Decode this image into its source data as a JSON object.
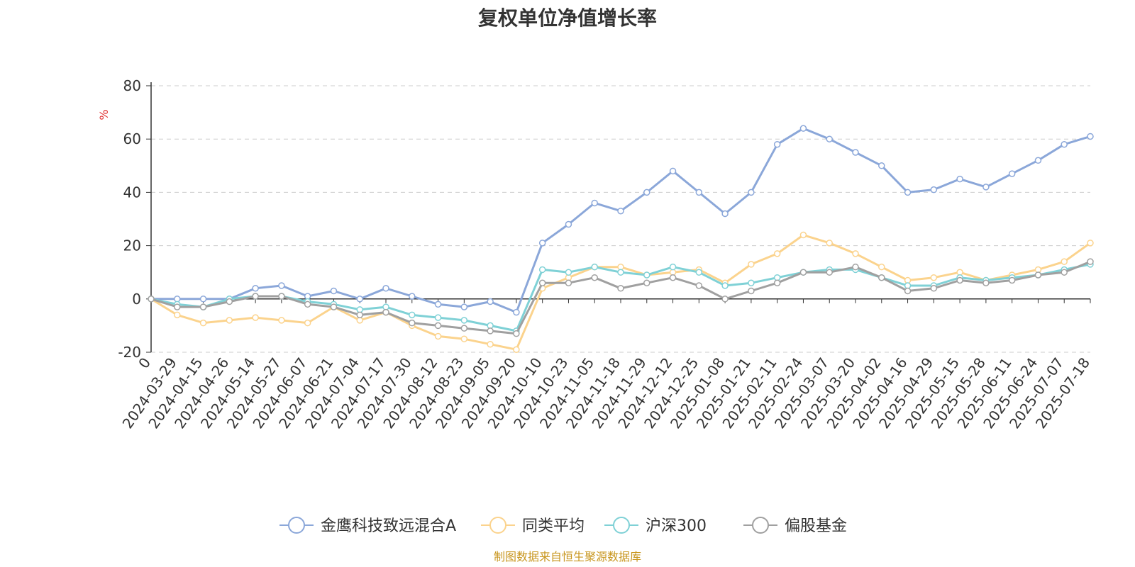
{
  "title": "复权单位净值增长率",
  "source": "制图数据来自恒生聚源数据库",
  "chart_data": {
    "type": "line",
    "title": "复权单位净值增长率",
    "ylabel": "%",
    "ylim": [
      -20,
      80
    ],
    "yticks": [
      -20,
      0,
      20,
      40,
      60,
      80
    ],
    "grid": true,
    "legend_position": "bottom",
    "categories": [
      "0",
      "2024-03-29",
      "2024-04-15",
      "2024-04-26",
      "2024-05-14",
      "2024-05-27",
      "2024-06-07",
      "2024-06-21",
      "2024-07-04",
      "2024-07-17",
      "2024-07-30",
      "2024-08-12",
      "2024-08-23",
      "2024-09-05",
      "2024-09-20",
      "2024-10-10",
      "2024-10-23",
      "2024-11-05",
      "2024-11-18",
      "2024-11-29",
      "2024-12-12",
      "2024-12-25",
      "2025-01-08",
      "2025-01-21",
      "2025-02-11",
      "2025-02-24",
      "2025-03-07",
      "2025-03-20",
      "2025-04-02",
      "2025-04-16",
      "2025-04-29",
      "2025-05-15",
      "2025-05-28",
      "2025-06-11",
      "2025-06-24",
      "2025-07-07",
      "2025-07-18"
    ],
    "series": [
      {
        "name": "金鹰科技致远混合A",
        "color": "#8ba7d9",
        "values": [
          0,
          0,
          0,
          0,
          4,
          5,
          1,
          3,
          0,
          4,
          1,
          -2,
          -3,
          -1,
          -5,
          21,
          28,
          36,
          33,
          40,
          48,
          40,
          32,
          40,
          58,
          64,
          60,
          55,
          50,
          40,
          41,
          45,
          42,
          47,
          52,
          58,
          61
        ]
      },
      {
        "name": "同类平均",
        "color": "#fbd38d",
        "values": [
          0,
          -6,
          -9,
          -8,
          -7,
          -8,
          -9,
          -3,
          -8,
          -5,
          -10,
          -14,
          -15,
          -17,
          -19,
          4,
          8,
          12,
          12,
          9,
          10,
          11,
          6,
          13,
          17,
          24,
          21,
          17,
          12,
          7,
          8,
          10,
          7,
          9,
          11,
          14,
          21
        ]
      },
      {
        "name": "沪深300",
        "color": "#7fd1d6",
        "values": [
          0,
          -2,
          -3,
          0,
          1,
          1,
          -1,
          -2,
          -4,
          -3,
          -6,
          -7,
          -8,
          -10,
          -12,
          11,
          10,
          12,
          10,
          9,
          12,
          10,
          5,
          6,
          8,
          10,
          11,
          11,
          8,
          5,
          5,
          8,
          7,
          8,
          9,
          11,
          13
        ]
      },
      {
        "name": "偏股基金",
        "color": "#a0a0a0",
        "values": [
          0,
          -3,
          -3,
          -1,
          1,
          1,
          -2,
          -3,
          -6,
          -5,
          -9,
          -10,
          -11,
          -12,
          -13,
          6,
          6,
          8,
          4,
          6,
          8,
          5,
          0,
          3,
          6,
          10,
          10,
          12,
          8,
          3,
          4,
          7,
          6,
          7,
          9,
          10,
          14
        ]
      }
    ]
  }
}
